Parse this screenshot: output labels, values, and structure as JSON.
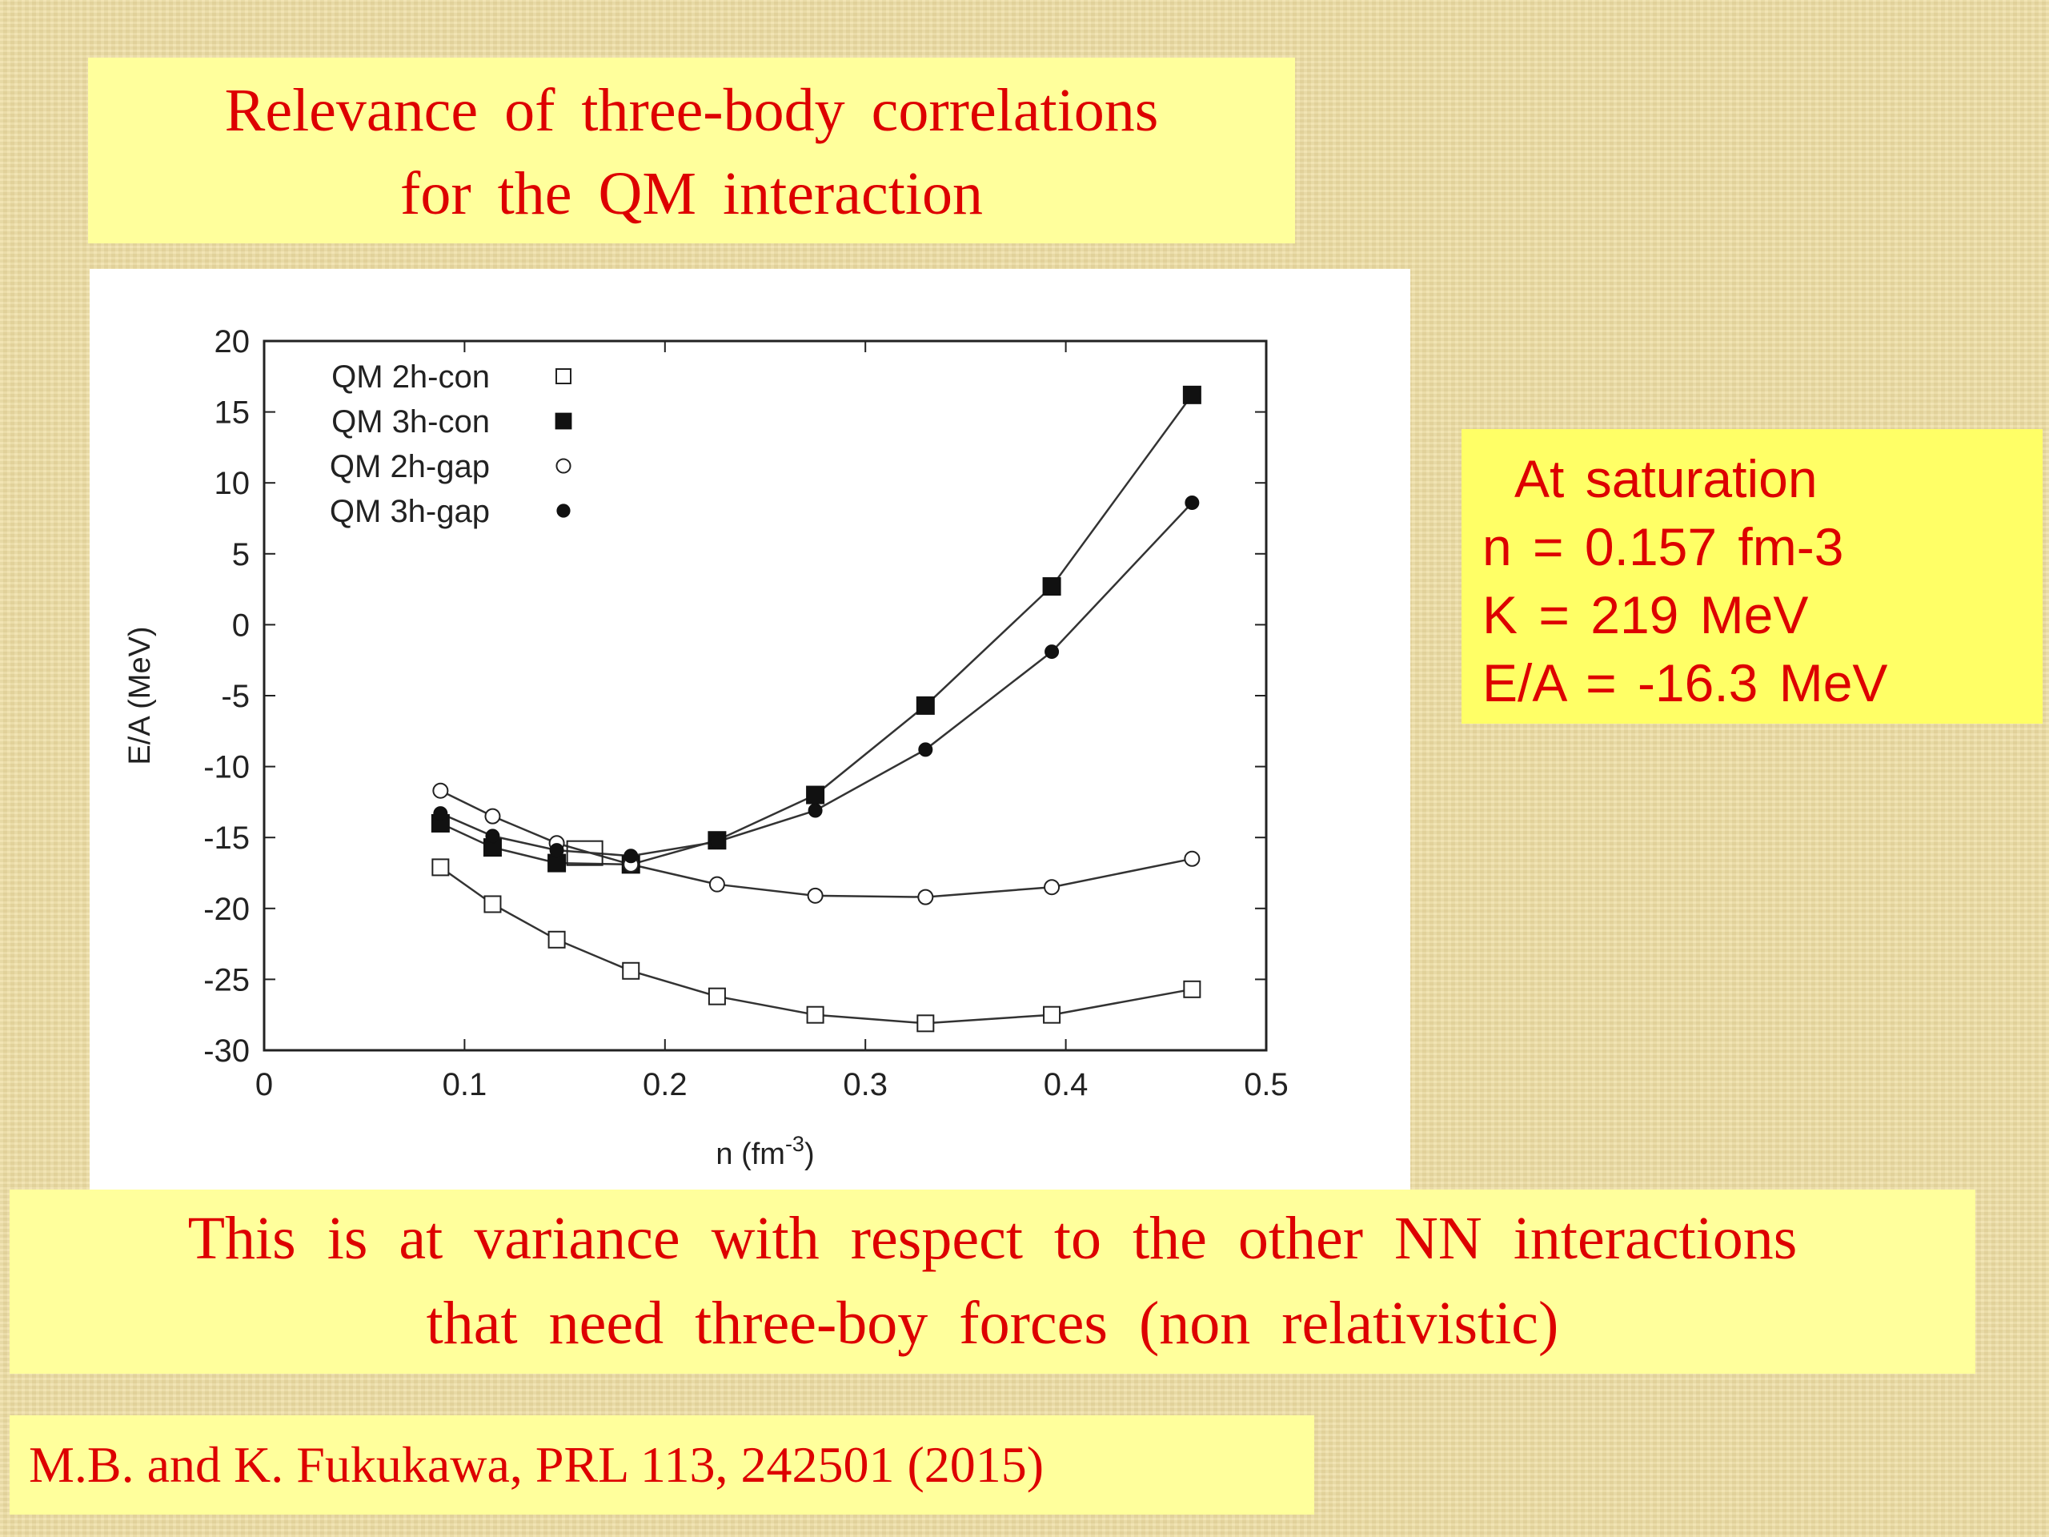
{
  "title": {
    "line1": "Relevance  of  three-body  correlations",
    "line2": "for  the QM  interaction"
  },
  "saturation": {
    "heading": "At  saturation",
    "density": "n = 0.157  fm-3",
    "compressibility": "K = 219 MeV",
    "energy": "E/A = -16.3  MeV"
  },
  "note": {
    "line1": "This  is  at  variance  with  respect  to  the  other  NN  interactions",
    "line2": "that  need  three-boy forces (non relativistic)"
  },
  "reference": "M.B. and K. Fukukawa, PRL 113, 242501 (2015)",
  "chart_data": {
    "type": "line",
    "xlabel_main": "n (fm",
    "xlabel_sup": "-3",
    "xlabel_end": ")",
    "ylabel": "E/A (MeV)",
    "xlim": [
      0,
      0.5
    ],
    "ylim": [
      -30,
      20
    ],
    "xticks": [
      0,
      0.1,
      0.2,
      0.3,
      0.4,
      0.5
    ],
    "xtick_labels": [
      "0",
      "0.1",
      "0.2",
      "0.3",
      "0.4",
      "0.5"
    ],
    "yticks": [
      20,
      15,
      10,
      5,
      0,
      -5,
      -10,
      -15,
      -20,
      -25,
      -30
    ],
    "ytick_labels": [
      "20",
      "15",
      "10",
      "5",
      "0",
      "-5",
      "-10",
      "-15",
      "-20",
      "-25",
      "-30"
    ],
    "grid": false,
    "legend_position": "top-left",
    "saturation_marker": {
      "x": 0.16,
      "y": -16.1
    },
    "series": [
      {
        "name": "QM 2h-con",
        "marker": "open-square",
        "x": [
          0.088,
          0.114,
          0.146,
          0.183,
          0.226,
          0.275,
          0.33,
          0.393,
          0.463
        ],
        "y": [
          -17.1,
          -19.7,
          -22.2,
          -24.4,
          -26.2,
          -27.5,
          -28.1,
          -27.5,
          -25.7
        ]
      },
      {
        "name": "QM 3h-con",
        "marker": "filled-square",
        "x": [
          0.088,
          0.114,
          0.146,
          0.183,
          0.226,
          0.275,
          0.33,
          0.393,
          0.463
        ],
        "y": [
          -14.0,
          -15.7,
          -16.8,
          -16.9,
          -15.2,
          -12.0,
          -5.7,
          2.7,
          16.2
        ]
      },
      {
        "name": "QM 2h-gap",
        "marker": "open-circle",
        "x": [
          0.088,
          0.114,
          0.146,
          0.183,
          0.226,
          0.275,
          0.33,
          0.393,
          0.463
        ],
        "y": [
          -11.7,
          -13.5,
          -15.4,
          -16.9,
          -18.3,
          -19.1,
          -19.2,
          -18.5,
          -16.5
        ]
      },
      {
        "name": "QM 3h-gap",
        "marker": "filled-circle",
        "x": [
          0.088,
          0.114,
          0.146,
          0.183,
          0.226,
          0.275,
          0.33,
          0.393,
          0.463
        ],
        "y": [
          -13.3,
          -14.9,
          -15.9,
          -16.3,
          -15.3,
          -13.1,
          -8.8,
          -1.9,
          8.6
        ]
      }
    ]
  }
}
